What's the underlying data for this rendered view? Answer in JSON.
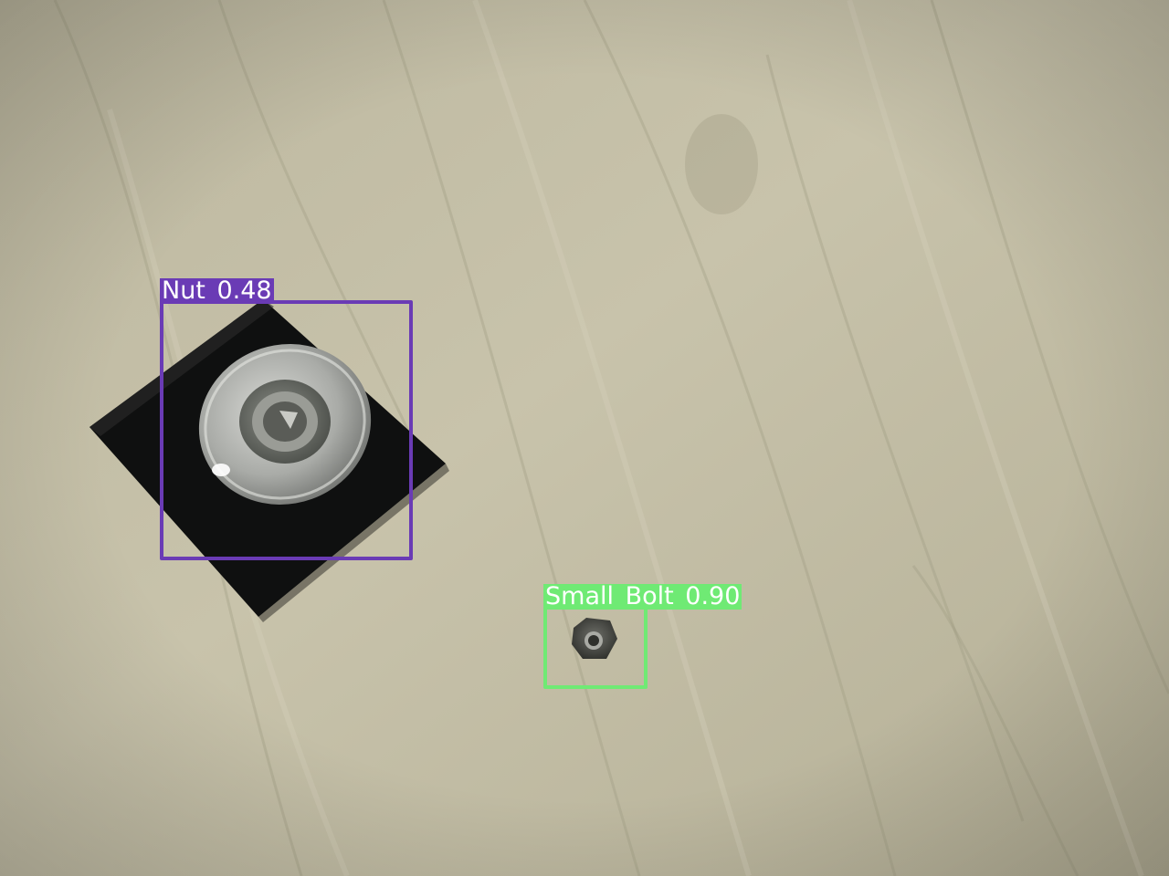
{
  "image": {
    "surface_colors": [
      "#c6c1a9",
      "#b7b299",
      "#a49f85"
    ]
  },
  "detections": [
    {
      "label": "Nut 0.48",
      "class": "Nut",
      "confidence": 0.48,
      "color": "#6a3bb5"
    },
    {
      "label": "Small Bolt 0.90",
      "class": "Small Bolt",
      "confidence": 0.9,
      "color": "#6fea74"
    }
  ]
}
